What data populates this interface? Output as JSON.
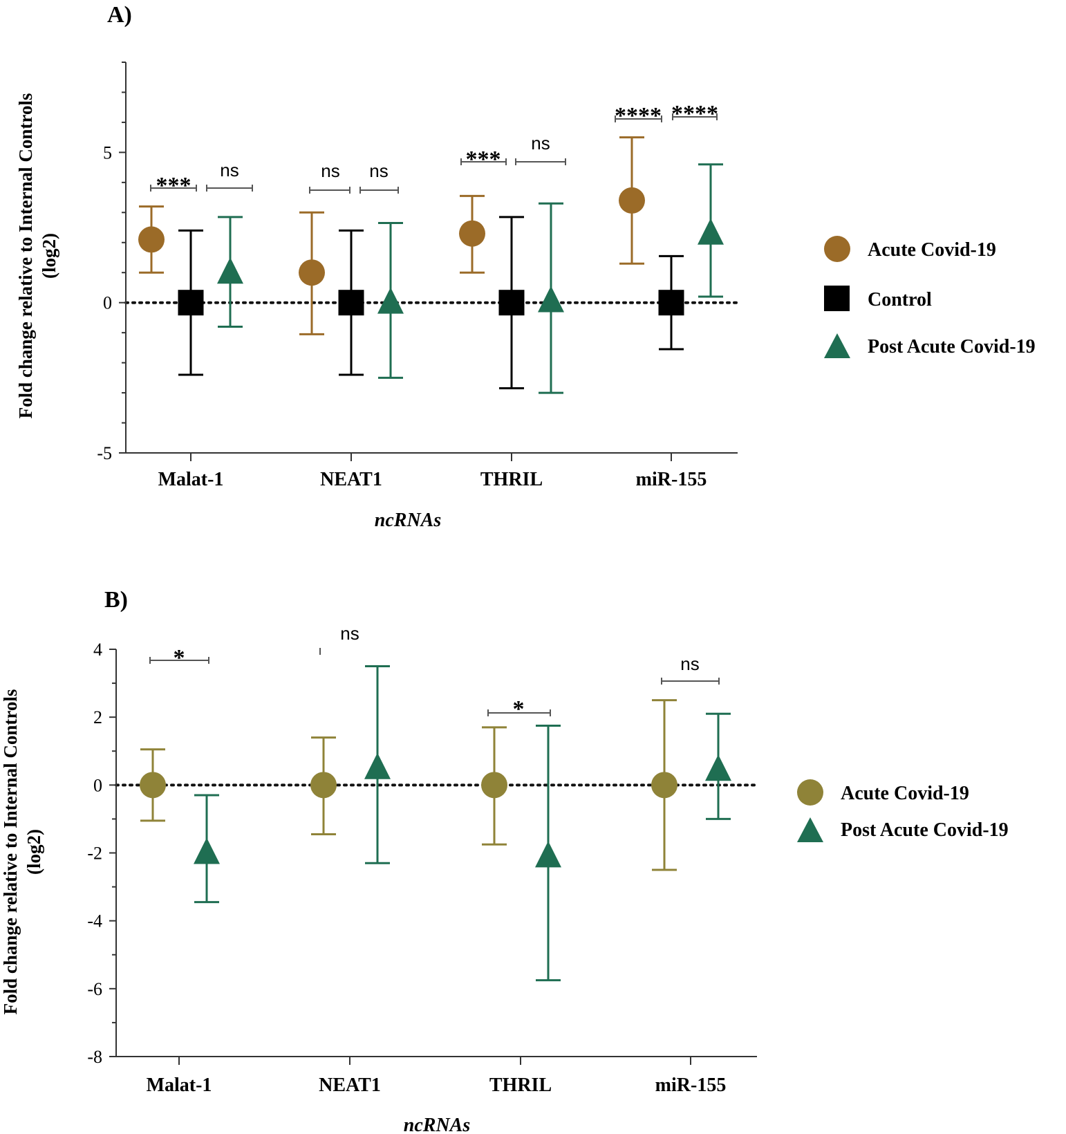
{
  "chart_data": [
    {
      "panel_label": "A)",
      "type": "scatter",
      "xlabel": "ncRNAs",
      "ylabel": "Fold change relative to Internal Controls",
      "ylabel_unit": "(log2)",
      "ylim": [
        -5,
        8
      ],
      "yticks": [
        {
          "value": -5,
          "label": "-5"
        },
        {
          "value": 0,
          "label": "0"
        },
        {
          "value": 5,
          "label": "5"
        }
      ],
      "categories": [
        "Malat-1",
        "NEAT1",
        "THRIL",
        "miR-155"
      ],
      "reference_line": 0,
      "series": [
        {
          "name": "Acute Covid-19",
          "marker": "circle",
          "color": "#9b6b28",
          "points": [
            {
              "category": "Malat-1",
              "mean": 2.1,
              "low": 1.0,
              "high": 3.2
            },
            {
              "category": "NEAT1",
              "mean": 1.0,
              "low": -1.05,
              "high": 3.0
            },
            {
              "category": "THRIL",
              "mean": 2.3,
              "low": 1.0,
              "high": 3.55
            },
            {
              "category": "miR-155",
              "mean": 3.4,
              "low": 1.3,
              "high": 5.5
            }
          ]
        },
        {
          "name": "Control",
          "marker": "square",
          "color": "#000000",
          "points": [
            {
              "category": "Malat-1",
              "mean": 0,
              "low": -2.4,
              "high": 2.4
            },
            {
              "category": "NEAT1",
              "mean": 0,
              "low": -2.4,
              "high": 2.4
            },
            {
              "category": "THRIL",
              "mean": 0,
              "low": -2.85,
              "high": 2.85
            },
            {
              "category": "miR-155",
              "mean": 0,
              "low": -1.55,
              "high": 1.55
            }
          ]
        },
        {
          "name": "Post Acute Covid-19",
          "marker": "triangle",
          "color": "#1f6e52",
          "points": [
            {
              "category": "Malat-1",
              "mean": 1.0,
              "low": -0.8,
              "high": 2.85
            },
            {
              "category": "NEAT1",
              "mean": 0.0,
              "low": -2.5,
              "high": 2.65
            },
            {
              "category": "THRIL",
              "mean": 0.05,
              "low": -3.0,
              "high": 3.3
            },
            {
              "category": "miR-155",
              "mean": 2.3,
              "low": 0.2,
              "high": 4.6
            }
          ]
        }
      ],
      "annotations": [
        {
          "category": "Malat-1",
          "between": [
            "Acute Covid-19",
            "Control"
          ],
          "text": "***"
        },
        {
          "category": "Malat-1",
          "between": [
            "Control",
            "Post Acute Covid-19"
          ],
          "text": "ns"
        },
        {
          "category": "NEAT1",
          "between": [
            "Acute Covid-19",
            "Control"
          ],
          "text": "ns"
        },
        {
          "category": "NEAT1",
          "between": [
            "Control",
            "Post Acute Covid-19"
          ],
          "text": "ns"
        },
        {
          "category": "THRIL",
          "between": [
            "Acute Covid-19",
            "Control"
          ],
          "text": "***"
        },
        {
          "category": "THRIL",
          "between": [
            "Control",
            "Post Acute Covid-19"
          ],
          "text": "ns"
        },
        {
          "category": "miR-155",
          "between": [
            "Acute Covid-19",
            "Control"
          ],
          "text": "****"
        },
        {
          "category": "miR-155",
          "between": [
            "Control",
            "Post Acute Covid-19"
          ],
          "text": "****"
        }
      ],
      "legend": {
        "placement": "right",
        "items": [
          "Acute Covid-19",
          "Control",
          "Post Acute Covid-19"
        ]
      }
    },
    {
      "panel_label": "B)",
      "type": "scatter",
      "xlabel": "ncRNAs",
      "ylabel": "Fold change relative to Internal Controls",
      "ylabel_unit": "(log2)",
      "ylim": [
        -8,
        4
      ],
      "yticks": [
        {
          "value": -8,
          "label": "-8"
        },
        {
          "value": -6,
          "label": "-6"
        },
        {
          "value": -4,
          "label": "-4"
        },
        {
          "value": -2,
          "label": "-2"
        },
        {
          "value": 0,
          "label": "0"
        },
        {
          "value": 2,
          "label": "2"
        },
        {
          "value": 4,
          "label": "4"
        }
      ],
      "categories": [
        "Malat-1",
        "NEAT1",
        "THRIL",
        "miR-155"
      ],
      "reference_line": 0,
      "series": [
        {
          "name": "Acute Covid-19",
          "marker": "circle",
          "color": "#8f8338",
          "points": [
            {
              "category": "Malat-1",
              "mean": 0,
              "low": -1.05,
              "high": 1.05
            },
            {
              "category": "NEAT1",
              "mean": 0,
              "low": -1.45,
              "high": 1.4
            },
            {
              "category": "THRIL",
              "mean": 0,
              "low": -1.75,
              "high": 1.7
            },
            {
              "category": "miR-155",
              "mean": 0,
              "low": -2.5,
              "high": 2.5
            }
          ]
        },
        {
          "name": "Post Acute Covid-19",
          "marker": "triangle",
          "color": "#1f6e52",
          "points": [
            {
              "category": "Malat-1",
              "mean": -2.0,
              "low": -3.45,
              "high": -0.3
            },
            {
              "category": "NEAT1",
              "mean": 0.5,
              "low": -2.3,
              "high": 3.5
            },
            {
              "category": "THRIL",
              "mean": -2.1,
              "low": -5.75,
              "high": 1.75
            },
            {
              "category": "miR-155",
              "mean": 0.45,
              "low": -1.0,
              "high": 2.1
            }
          ]
        }
      ],
      "annotations": [
        {
          "category": "Malat-1",
          "text": "*"
        },
        {
          "category": "NEAT1",
          "text": "ns"
        },
        {
          "category": "THRIL",
          "text": "*"
        },
        {
          "category": "miR-155",
          "text": "ns"
        }
      ],
      "legend": {
        "placement": "right",
        "items": [
          "Acute Covid-19",
          "Post Acute Covid-19"
        ]
      }
    }
  ]
}
